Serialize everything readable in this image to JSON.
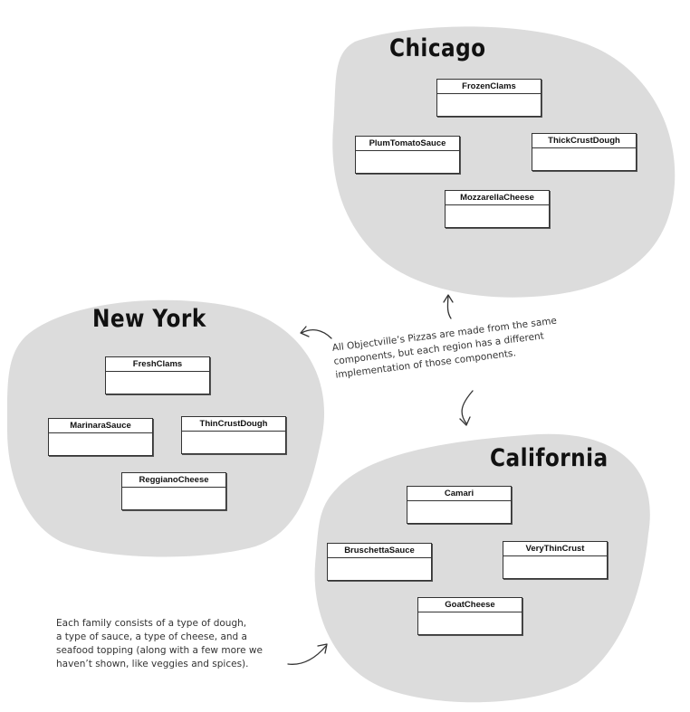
{
  "regions": {
    "chicago": {
      "title": "Chicago",
      "classes": [
        "FrozenClams",
        "PlumTomatoSauce",
        "ThickCrustDough",
        "MozzarellaCheese"
      ]
    },
    "new_york": {
      "title": "New York",
      "classes": [
        "FreshClams",
        "MarinaraSauce",
        "ThinCrustDough",
        "ReggianoCheese"
      ]
    },
    "california": {
      "title": "California",
      "classes": [
        "Camari",
        "BruschettaSauce",
        "VeryThinCrust",
        "GoatCheese"
      ]
    }
  },
  "notes": {
    "components": [
      "All Objectville’s Pizzas are made from the same",
      "components, but each region has a different",
      "implementation of those components."
    ],
    "family": [
      "Each family consists of a type of dough,",
      "a type of sauce, a type of cheese, and a",
      "seafood topping (along with a few more we",
      "haven’t shown, like veggies and spices)."
    ]
  }
}
